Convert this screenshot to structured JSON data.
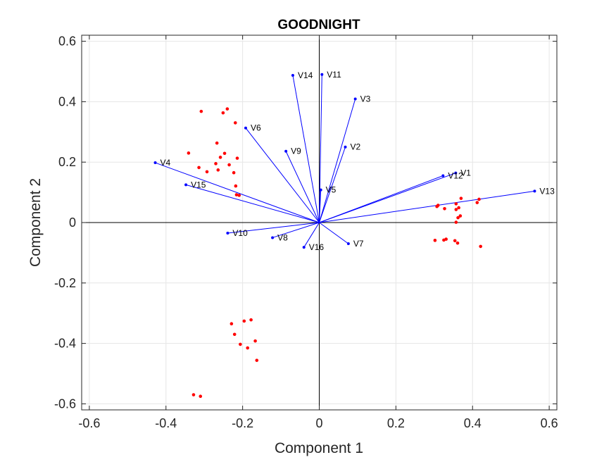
{
  "chart_data": {
    "type": "scatter",
    "title": "GOODNIGHT",
    "xlabel": "Component 1",
    "ylabel": "Component 2",
    "xlim": [
      -0.62,
      0.62
    ],
    "ylim": [
      -0.62,
      0.62
    ],
    "xticks": [
      -0.6,
      -0.4,
      -0.2,
      0,
      0.2,
      0.4,
      0.6
    ],
    "xtick_labels": [
      "-0.6",
      "-0.4",
      "-0.2",
      "0",
      "0.2",
      "0.4",
      "0.6"
    ],
    "yticks": [
      -0.6,
      -0.4,
      -0.2,
      0,
      0.2,
      0.4,
      0.6
    ],
    "ytick_labels": [
      "-0.6",
      "-0.4",
      "-0.2",
      "0",
      "0.2",
      "0.4",
      "0.6"
    ],
    "grid": true,
    "vector_color": "#0000ff",
    "point_color": "#ff0000",
    "vectors": [
      {
        "name": "V1",
        "x": 0.356,
        "y": 0.164
      },
      {
        "name": "V2",
        "x": 0.068,
        "y": 0.25
      },
      {
        "name": "V3",
        "x": 0.094,
        "y": 0.409
      },
      {
        "name": "V4",
        "x": -0.428,
        "y": 0.198
      },
      {
        "name": "V5",
        "x": 0.004,
        "y": 0.108
      },
      {
        "name": "V6",
        "x": -0.192,
        "y": 0.313
      },
      {
        "name": "V7",
        "x": 0.076,
        "y": -0.07
      },
      {
        "name": "V8",
        "x": -0.122,
        "y": -0.05
      },
      {
        "name": "V9",
        "x": -0.087,
        "y": 0.236
      },
      {
        "name": "V10",
        "x": -0.239,
        "y": -0.035
      },
      {
        "name": "V11",
        "x": 0.007,
        "y": 0.49
      },
      {
        "name": "V12",
        "x": 0.323,
        "y": 0.155
      },
      {
        "name": "V13",
        "x": 0.562,
        "y": 0.104
      },
      {
        "name": "V14",
        "x": -0.069,
        "y": 0.487
      },
      {
        "name": "V15",
        "x": -0.348,
        "y": 0.125
      },
      {
        "name": "V16",
        "x": -0.04,
        "y": -0.082
      }
    ],
    "points": [
      {
        "x": -0.308,
        "y": 0.368
      },
      {
        "x": -0.24,
        "y": 0.376
      },
      {
        "x": -0.251,
        "y": 0.363
      },
      {
        "x": -0.219,
        "y": 0.33
      },
      {
        "x": -0.267,
        "y": 0.263
      },
      {
        "x": -0.341,
        "y": 0.23
      },
      {
        "x": -0.247,
        "y": 0.229
      },
      {
        "x": -0.258,
        "y": 0.216
      },
      {
        "x": -0.214,
        "y": 0.213
      },
      {
        "x": -0.27,
        "y": 0.195
      },
      {
        "x": -0.235,
        "y": 0.191
      },
      {
        "x": -0.314,
        "y": 0.182
      },
      {
        "x": -0.264,
        "y": 0.174
      },
      {
        "x": -0.293,
        "y": 0.168
      },
      {
        "x": -0.223,
        "y": 0.165
      },
      {
        "x": -0.218,
        "y": 0.121
      },
      {
        "x": -0.216,
        "y": 0.092
      },
      {
        "x": -0.209,
        "y": 0.09
      },
      {
        "x": 0.37,
        "y": 0.08
      },
      {
        "x": 0.417,
        "y": 0.077
      },
      {
        "x": 0.412,
        "y": 0.066
      },
      {
        "x": 0.357,
        "y": 0.062
      },
      {
        "x": 0.31,
        "y": 0.057
      },
      {
        "x": 0.307,
        "y": 0.053
      },
      {
        "x": 0.364,
        "y": 0.049
      },
      {
        "x": 0.327,
        "y": 0.046
      },
      {
        "x": 0.357,
        "y": 0.043
      },
      {
        "x": 0.368,
        "y": 0.022
      },
      {
        "x": 0.362,
        "y": 0.016
      },
      {
        "x": 0.357,
        "y": 0.001
      },
      {
        "x": 0.302,
        "y": -0.059
      },
      {
        "x": 0.331,
        "y": -0.055
      },
      {
        "x": 0.325,
        "y": -0.058
      },
      {
        "x": 0.354,
        "y": -0.06
      },
      {
        "x": 0.361,
        "y": -0.068
      },
      {
        "x": 0.421,
        "y": -0.079
      },
      {
        "x": -0.229,
        "y": -0.335
      },
      {
        "x": -0.196,
        "y": -0.326
      },
      {
        "x": -0.178,
        "y": -0.322
      },
      {
        "x": -0.221,
        "y": -0.37
      },
      {
        "x": -0.167,
        "y": -0.392
      },
      {
        "x": -0.206,
        "y": -0.403
      },
      {
        "x": -0.187,
        "y": -0.415
      },
      {
        "x": -0.163,
        "y": -0.456
      },
      {
        "x": -0.328,
        "y": -0.57
      },
      {
        "x": -0.31,
        "y": -0.575
      }
    ]
  }
}
